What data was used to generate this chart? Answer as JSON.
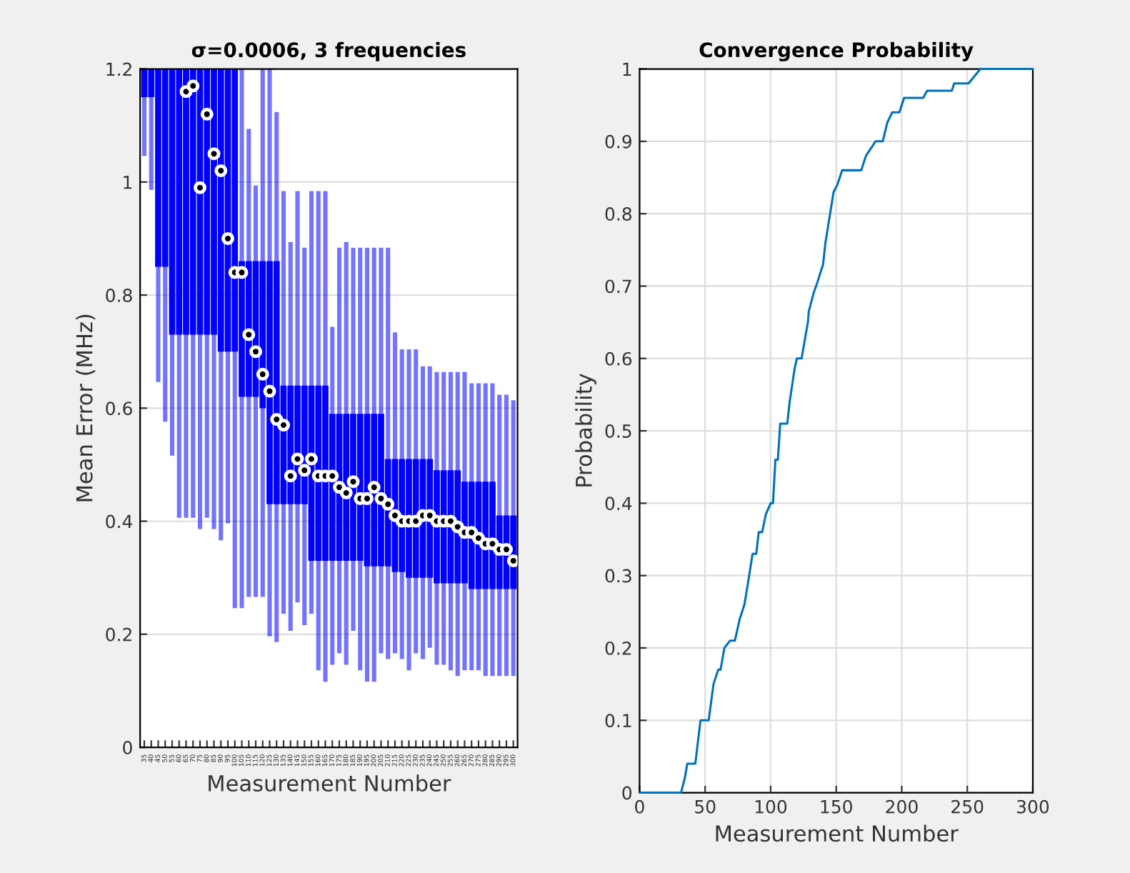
{
  "chart_data": [
    {
      "type": "box",
      "title": "σ=0.0006, 3 frequencies",
      "xlabel": "Measurement Number",
      "ylabel": "Mean Error (MHz)",
      "categories": [
        "35",
        "40",
        "45",
        "50",
        "55",
        "60",
        "65",
        "70",
        "75",
        "80",
        "85",
        "90",
        "95",
        "100",
        "105",
        "110",
        "115",
        "120",
        "125",
        "130",
        "135",
        "140",
        "145",
        "150",
        "155",
        "160",
        "165",
        "170",
        "175",
        "180",
        "185",
        "190",
        "195",
        "200",
        "205",
        "210",
        "215",
        "220",
        "225",
        "230",
        "235",
        "240",
        "245",
        "250",
        "255",
        "260",
        "265",
        "270",
        "275",
        "280",
        "285",
        "290",
        "295",
        "300"
      ],
      "series": [
        {
          "color": "#0000ff",
          "boxes": [
            {
              "low": 1.05,
              "q1": 1.15,
              "median": null,
              "q3": 1.2,
              "high": 1.2
            },
            {
              "low": 0.99,
              "q1": 1.15,
              "median": null,
              "q3": 1.2,
              "high": 1.2
            },
            {
              "low": 0.65,
              "q1": 0.85,
              "median": null,
              "q3": 1.2,
              "high": 1.2
            },
            {
              "low": 0.58,
              "q1": 0.85,
              "median": null,
              "q3": 1.2,
              "high": 1.2
            },
            {
              "low": 0.52,
              "q1": 0.73,
              "median": null,
              "q3": 1.2,
              "high": 1.2
            },
            {
              "low": 0.41,
              "q1": 0.73,
              "median": null,
              "q3": 1.2,
              "high": 1.2
            },
            {
              "low": 0.41,
              "q1": 0.73,
              "median": 1.16,
              "q3": 1.2,
              "high": 1.2
            },
            {
              "low": 0.41,
              "q1": 0.73,
              "median": 1.17,
              "q3": 1.2,
              "high": 1.2
            },
            {
              "low": 0.39,
              "q1": 0.73,
              "median": 0.99,
              "q3": 1.2,
              "high": 1.2
            },
            {
              "low": 0.41,
              "q1": 0.73,
              "median": 1.12,
              "q3": 1.2,
              "high": 1.2
            },
            {
              "low": 0.39,
              "q1": 0.73,
              "median": 1.05,
              "q3": 1.2,
              "high": 1.2
            },
            {
              "low": 0.37,
              "q1": 0.7,
              "median": 1.02,
              "q3": 1.2,
              "high": 1.2
            },
            {
              "low": 0.4,
              "q1": 0.7,
              "median": 0.9,
              "q3": 1.2,
              "high": 1.2
            },
            {
              "low": 0.25,
              "q1": 0.7,
              "median": 0.84,
              "q3": 1.2,
              "high": 1.2
            },
            {
              "low": 0.25,
              "q1": 0.62,
              "median": 0.84,
              "q3": 0.86,
              "high": 1.2
            },
            {
              "low": 0.27,
              "q1": 0.62,
              "median": 0.73,
              "q3": 0.86,
              "high": 1.09
            },
            {
              "low": 0.27,
              "q1": 0.62,
              "median": 0.7,
              "q3": 0.86,
              "high": 0.99
            },
            {
              "low": 0.27,
              "q1": 0.6,
              "median": 0.66,
              "q3": 0.86,
              "high": 1.2
            },
            {
              "low": 0.2,
              "q1": 0.43,
              "median": 0.63,
              "q3": 0.86,
              "high": 1.2
            },
            {
              "low": 0.19,
              "q1": 0.43,
              "median": 0.58,
              "q3": 0.86,
              "high": 1.12
            },
            {
              "low": 0.24,
              "q1": 0.43,
              "median": 0.57,
              "q3": 0.64,
              "high": 0.98
            },
            {
              "low": 0.21,
              "q1": 0.43,
              "median": 0.48,
              "q3": 0.64,
              "high": 0.89
            },
            {
              "low": 0.26,
              "q1": 0.43,
              "median": 0.51,
              "q3": 0.64,
              "high": 0.98
            },
            {
              "low": 0.22,
              "q1": 0.43,
              "median": 0.49,
              "q3": 0.64,
              "high": 0.88
            },
            {
              "low": 0.24,
              "q1": 0.33,
              "median": 0.51,
              "q3": 0.64,
              "high": 0.98
            },
            {
              "low": 0.14,
              "q1": 0.33,
              "median": 0.48,
              "q3": 0.64,
              "high": 0.98
            },
            {
              "low": 0.12,
              "q1": 0.33,
              "median": 0.48,
              "q3": 0.64,
              "high": 0.98
            },
            {
              "low": 0.15,
              "q1": 0.33,
              "median": 0.48,
              "q3": 0.59,
              "high": 0.74
            },
            {
              "low": 0.17,
              "q1": 0.33,
              "median": 0.46,
              "q3": 0.59,
              "high": 0.88
            },
            {
              "low": 0.15,
              "q1": 0.33,
              "median": 0.45,
              "q3": 0.59,
              "high": 0.89
            },
            {
              "low": 0.21,
              "q1": 0.33,
              "median": 0.47,
              "q3": 0.59,
              "high": 0.88
            },
            {
              "low": 0.14,
              "q1": 0.33,
              "median": 0.44,
              "q3": 0.59,
              "high": 0.88
            },
            {
              "low": 0.12,
              "q1": 0.32,
              "median": 0.44,
              "q3": 0.59,
              "high": 0.88
            },
            {
              "low": 0.12,
              "q1": 0.32,
              "median": 0.46,
              "q3": 0.59,
              "high": 0.88
            },
            {
              "low": 0.17,
              "q1": 0.32,
              "median": 0.44,
              "q3": 0.59,
              "high": 0.88
            },
            {
              "low": 0.16,
              "q1": 0.32,
              "median": 0.43,
              "q3": 0.51,
              "high": 0.88
            },
            {
              "low": 0.17,
              "q1": 0.31,
              "median": 0.41,
              "q3": 0.51,
              "high": 0.73
            },
            {
              "low": 0.16,
              "q1": 0.31,
              "median": 0.4,
              "q3": 0.51,
              "high": 0.7
            },
            {
              "low": 0.14,
              "q1": 0.3,
              "median": 0.4,
              "q3": 0.51,
              "high": 0.7
            },
            {
              "low": 0.17,
              "q1": 0.3,
              "median": 0.4,
              "q3": 0.51,
              "high": 0.7
            },
            {
              "low": 0.16,
              "q1": 0.3,
              "median": 0.41,
              "q3": 0.51,
              "high": 0.67
            },
            {
              "low": 0.18,
              "q1": 0.3,
              "median": 0.41,
              "q3": 0.51,
              "high": 0.67
            },
            {
              "low": 0.15,
              "q1": 0.29,
              "median": 0.4,
              "q3": 0.49,
              "high": 0.66
            },
            {
              "low": 0.15,
              "q1": 0.29,
              "median": 0.4,
              "q3": 0.49,
              "high": 0.66
            },
            {
              "low": 0.14,
              "q1": 0.29,
              "median": 0.4,
              "q3": 0.49,
              "high": 0.66
            },
            {
              "low": 0.13,
              "q1": 0.29,
              "median": 0.39,
              "q3": 0.49,
              "high": 0.66
            },
            {
              "low": 0.14,
              "q1": 0.29,
              "median": 0.38,
              "q3": 0.47,
              "high": 0.66
            },
            {
              "low": 0.14,
              "q1": 0.28,
              "median": 0.38,
              "q3": 0.47,
              "high": 0.64
            },
            {
              "low": 0.14,
              "q1": 0.28,
              "median": 0.37,
              "q3": 0.47,
              "high": 0.64
            },
            {
              "low": 0.13,
              "q1": 0.28,
              "median": 0.36,
              "q3": 0.47,
              "high": 0.64
            },
            {
              "low": 0.13,
              "q1": 0.28,
              "median": 0.36,
              "q3": 0.47,
              "high": 0.64
            },
            {
              "low": 0.13,
              "q1": 0.28,
              "median": 0.35,
              "q3": 0.41,
              "high": 0.62
            },
            {
              "low": 0.13,
              "q1": 0.28,
              "median": 0.35,
              "q3": 0.41,
              "high": 0.62
            },
            {
              "low": 0.13,
              "q1": 0.28,
              "median": 0.33,
              "q3": 0.41,
              "high": 0.61
            }
          ]
        }
      ],
      "ylim": [
        0,
        1.2
      ],
      "yticks": [
        0,
        0.2,
        0.4,
        0.6,
        0.8,
        1,
        1.2
      ],
      "grid": "y"
    },
    {
      "type": "line",
      "title": "Convergence Probability",
      "xlabel": "Measurement Number",
      "ylabel": "Probability",
      "series": [
        {
          "color": "#0072bd",
          "x": [
            0,
            31.6,
            34.5,
            36.4,
            42.5,
            46.5,
            52.7,
            56.4,
            60,
            61.8,
            64.7,
            69,
            72.7,
            76.4,
            80,
            83.6,
            86.2,
            89,
            90.9,
            93.5,
            96.4,
            100,
            101.8,
            103.6,
            105.5,
            107.3,
            112.7,
            114.5,
            118.2,
            120,
            123.6,
            128.4,
            129.1,
            132.7,
            135.6,
            140,
            141.8,
            148,
            150.9,
            154.5,
            169.1,
            172.7,
            176.4,
            180,
            185.5,
            189,
            192.7,
            198.2,
            201.8,
            216.4,
            219.3,
            238.2,
            240,
            251,
            260,
            300
          ],
          "values": [
            0,
            0,
            0.02,
            0.04,
            0.04,
            0.1,
            0.1,
            0.15,
            0.17,
            0.17,
            0.2,
            0.21,
            0.21,
            0.24,
            0.26,
            0.3,
            0.33,
            0.33,
            0.36,
            0.36,
            0.385,
            0.4,
            0.4,
            0.46,
            0.46,
            0.51,
            0.51,
            0.54,
            0.585,
            0.6,
            0.6,
            0.65,
            0.665,
            0.69,
            0.705,
            0.73,
            0.76,
            0.83,
            0.84,
            0.86,
            0.86,
            0.88,
            0.89,
            0.9,
            0.9,
            0.926,
            0.94,
            0.94,
            0.96,
            0.96,
            0.97,
            0.97,
            0.98,
            0.98,
            1,
            1
          ]
        }
      ],
      "xlim": [
        0,
        300
      ],
      "xticks": [
        0,
        50,
        100,
        150,
        200,
        250,
        300
      ],
      "ylim": [
        0,
        1
      ],
      "yticks": [
        0,
        0.1,
        0.2,
        0.3,
        0.4,
        0.5,
        0.6,
        0.7,
        0.8,
        0.9,
        1
      ],
      "grid": true
    }
  ]
}
